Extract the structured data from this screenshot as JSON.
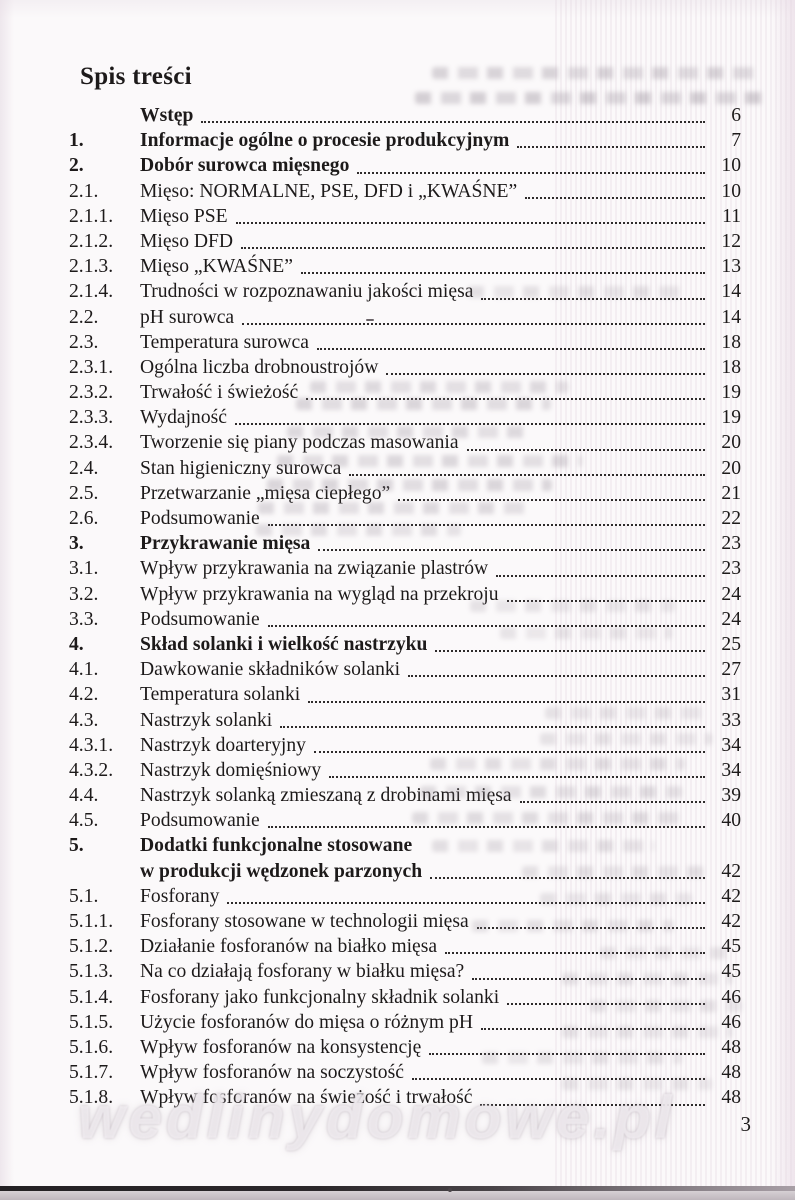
{
  "page": {
    "heading": "Spis treści",
    "page_number": "3",
    "watermark": "wedlinydomowe.pl"
  },
  "toc": {
    "entries": [
      {
        "num": "",
        "title": "Wstęp",
        "page": "6",
        "bold": true
      },
      {
        "num": "1.",
        "title": "Informacje ogólne o procesie produkcyjnym",
        "page": "7",
        "bold": true
      },
      {
        "num": "2.",
        "title": "Dobór surowca mięsnego",
        "page": "10",
        "bold": true
      },
      {
        "num": "2.1.",
        "title": "Mięso: NORMALNE, PSE, DFD i „KWAŚNE”",
        "page": "10",
        "bold": false
      },
      {
        "num": "2.1.1.",
        "title": "Mięso PSE",
        "page": "11",
        "bold": false
      },
      {
        "num": "2.1.2.",
        "title": "Mięso DFD",
        "page": "12",
        "bold": false
      },
      {
        "num": "2.1.3.",
        "title": "Mięso „KWAŚNE”",
        "page": "13",
        "bold": false
      },
      {
        "num": "2.1.4.",
        "title": "Trudności w rozpoznawaniu jakości mięsa",
        "page": "14",
        "bold": false
      },
      {
        "num": "2.2.",
        "title": "pH surowca",
        "page": "14",
        "bold": false
      },
      {
        "num": "2.3.",
        "title": "Temperatura surowca",
        "page": "18",
        "bold": false
      },
      {
        "num": "2.3.1.",
        "title": "Ogólna liczba drobnoustrojów",
        "page": "18",
        "bold": false
      },
      {
        "num": "2.3.2.",
        "title": "Trwałość i świeżość",
        "page": "19",
        "bold": false
      },
      {
        "num": "2.3.3.",
        "title": "Wydajność",
        "page": "19",
        "bold": false
      },
      {
        "num": "2.3.4.",
        "title": "Tworzenie się piany podczas masowania",
        "page": "20",
        "bold": false
      },
      {
        "num": "2.4.",
        "title": "Stan higieniczny surowca",
        "page": "20",
        "bold": false
      },
      {
        "num": "2.5.",
        "title": "Przetwarzanie „mięsa ciepłego”",
        "page": "21",
        "bold": false
      },
      {
        "num": "2.6.",
        "title": "Podsumowanie",
        "page": "22",
        "bold": false
      },
      {
        "num": "3.",
        "title": "Przykrawanie mięsa",
        "page": "23",
        "bold": true
      },
      {
        "num": "3.1.",
        "title": "Wpływ przykrawania na związanie plastrów",
        "page": "23",
        "bold": false
      },
      {
        "num": "3.2.",
        "title": "Wpływ przykrawania na wygląd na przekroju",
        "page": "24",
        "bold": false
      },
      {
        "num": "3.3.",
        "title": "Podsumowanie",
        "page": "24",
        "bold": false
      },
      {
        "num": "4.",
        "title": "Skład solanki i wielkość nastrzyku",
        "page": "25",
        "bold": true
      },
      {
        "num": "4.1.",
        "title": "Dawkowanie składników solanki",
        "page": "27",
        "bold": false
      },
      {
        "num": "4.2.",
        "title": "Temperatura solanki",
        "page": "31",
        "bold": false
      },
      {
        "num": "4.3.",
        "title": "Nastrzyk solanki",
        "page": "33",
        "bold": false
      },
      {
        "num": "4.3.1.",
        "title": "Nastrzyk doarteryjny",
        "page": "34",
        "bold": false
      },
      {
        "num": "4.3.2.",
        "title": "Nastrzyk domięśniowy",
        "page": "34",
        "bold": false
      },
      {
        "num": "4.4.",
        "title": "Nastrzyk solanką zmieszaną z drobinami mięsa",
        "page": "39",
        "bold": false
      },
      {
        "num": "4.5.",
        "title": "Podsumowanie",
        "page": "40",
        "bold": false
      },
      {
        "num": "5.",
        "title": "Dodatki funkcjonalne stosowane",
        "title2": "w produkcji wędzonek parzonych",
        "page": "42",
        "bold": true
      },
      {
        "num": "5.1.",
        "title": "Fosforany",
        "page": "42",
        "bold": false
      },
      {
        "num": "5.1.1.",
        "title": "Fosforany stosowane w technologii mięsa",
        "page": "42",
        "bold": false
      },
      {
        "num": "5.1.2.",
        "title": "Działanie fosforanów na białko mięsa",
        "page": "45",
        "bold": false
      },
      {
        "num": "5.1.3.",
        "title": "Na co działają fosforany w białku mięsa?",
        "page": "45",
        "bold": false
      },
      {
        "num": "5.1.4.",
        "title": "Fosforany jako funkcjonalny składnik solanki",
        "page": "46",
        "bold": false
      },
      {
        "num": "5.1.5.",
        "title": "Użycie fosforanów do mięsa o różnym pH",
        "page": "46",
        "bold": false
      },
      {
        "num": "5.1.6.",
        "title": "Wpływ fosforanów na konsystencję",
        "page": "48",
        "bold": false
      },
      {
        "num": "5.1.7.",
        "title": "Wpływ fosforanów na soczystość",
        "page": "48",
        "bold": false
      },
      {
        "num": "5.1.8.",
        "title": "Wpływ fosforanów na świeżość i trwałość",
        "page": "48",
        "bold": false
      }
    ]
  }
}
